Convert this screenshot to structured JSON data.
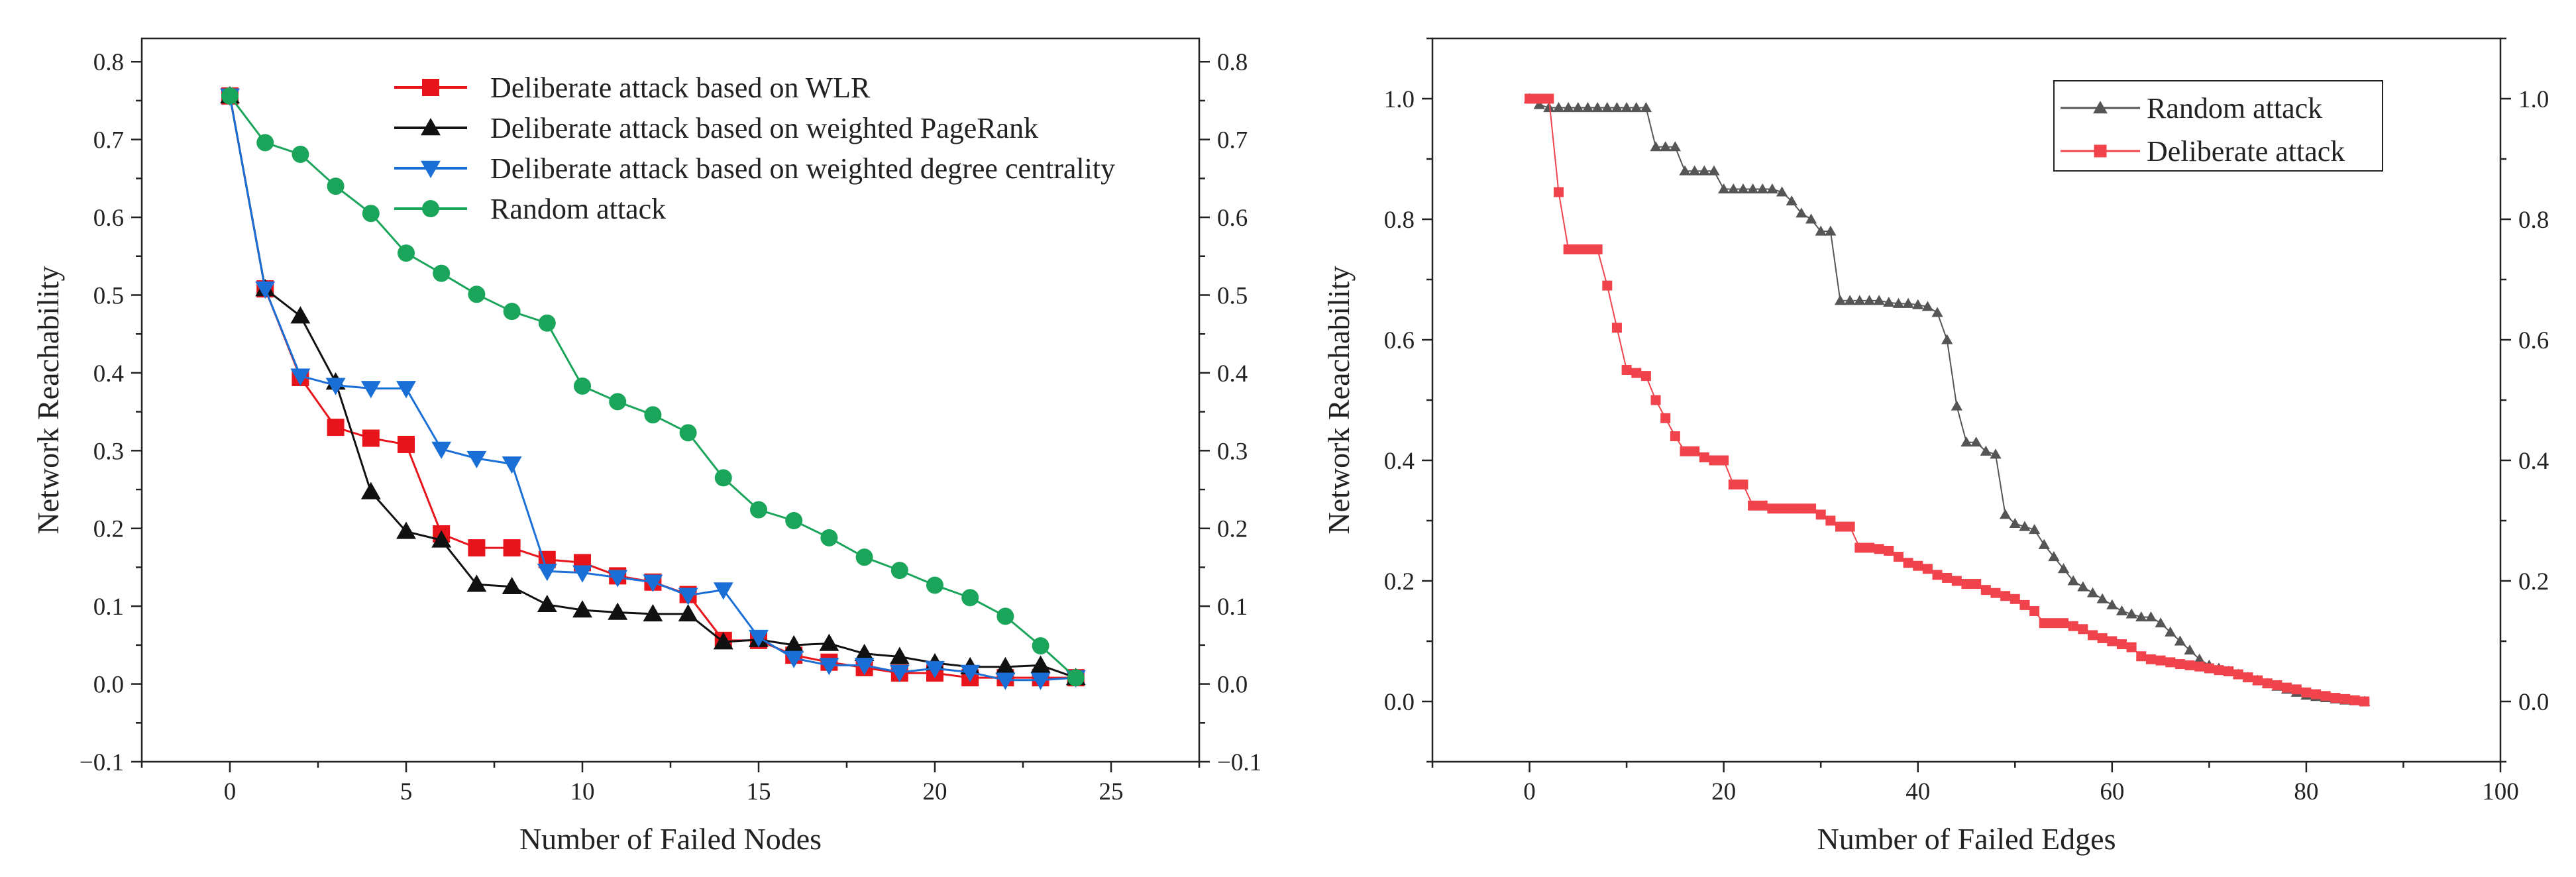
{
  "chart_data": [
    {
      "type": "line",
      "xlabel": "Number of Failed Nodes",
      "ylabel": "Network Reachability",
      "xlim": [
        -2.5,
        27.5
      ],
      "ylim": [
        -0.1,
        0.83
      ],
      "xticks": [
        0,
        5,
        10,
        15,
        20,
        25
      ],
      "yticks": [
        -0.1,
        0.0,
        0.1,
        0.2,
        0.3,
        0.4,
        0.5,
        0.6,
        0.7,
        0.8
      ],
      "xtick_labels": [
        "0",
        "5",
        "10",
        "15",
        "20",
        "25"
      ],
      "ytick_labels": [
        "−0.1",
        "0.0",
        "0.1",
        "0.2",
        "0.3",
        "0.4",
        "0.5",
        "0.6",
        "0.7",
        "0.8"
      ],
      "right_axis_mirror": true,
      "legend_position": "top-center",
      "series": [
        {
          "name": "Deliberate attack based on WLR",
          "color": "#e8141b",
          "marker": "square",
          "x": [
            0,
            1,
            2,
            3,
            4,
            5,
            6,
            7,
            8,
            9,
            10,
            11,
            12,
            13,
            14,
            15,
            16,
            17,
            18,
            19,
            20,
            21,
            22,
            23,
            24
          ],
          "values": [
            0.756,
            0.508,
            0.394,
            0.33,
            0.316,
            0.308,
            0.193,
            0.175,
            0.175,
            0.16,
            0.156,
            0.139,
            0.131,
            0.115,
            0.056,
            0.056,
            0.037,
            0.028,
            0.021,
            0.014,
            0.014,
            0.008,
            0.008,
            0.008,
            0.008
          ]
        },
        {
          "name": "Deliberate attack based on weighted PageRank",
          "color": "#111111",
          "marker": "triangle-up",
          "x": [
            0,
            1,
            2,
            3,
            4,
            5,
            6,
            7,
            8,
            9,
            10,
            11,
            12,
            13,
            14,
            15,
            16,
            17,
            18,
            19,
            20,
            21,
            22,
            23,
            24
          ],
          "values": [
            0.756,
            0.508,
            0.473,
            0.388,
            0.247,
            0.196,
            0.185,
            0.128,
            0.125,
            0.102,
            0.095,
            0.092,
            0.09,
            0.09,
            0.054,
            0.057,
            0.05,
            0.052,
            0.039,
            0.035,
            0.027,
            0.022,
            0.022,
            0.024,
            0.008
          ]
        },
        {
          "name": "Deliberate attack based on weighted degree centrality",
          "color": "#1a6fd6",
          "marker": "triangle-down",
          "x": [
            0,
            1,
            2,
            3,
            4,
            5,
            6,
            7,
            8,
            9,
            10,
            11,
            12,
            13,
            14,
            15,
            16,
            17,
            18,
            19,
            20,
            21,
            22,
            23,
            24
          ],
          "values": [
            0.756,
            0.508,
            0.396,
            0.384,
            0.38,
            0.38,
            0.302,
            0.29,
            0.283,
            0.145,
            0.143,
            0.137,
            0.131,
            0.114,
            0.121,
            0.06,
            0.033,
            0.024,
            0.024,
            0.015,
            0.02,
            0.015,
            0.005,
            0.005,
            0.008
          ]
        },
        {
          "name": "Random attack",
          "color": "#1aa55a",
          "marker": "circle",
          "x": [
            0,
            1,
            2,
            3,
            4,
            5,
            6,
            7,
            8,
            9,
            10,
            11,
            12,
            13,
            14,
            15,
            16,
            17,
            18,
            19,
            20,
            21,
            22,
            23,
            24
          ],
          "values": [
            0.756,
            0.696,
            0.681,
            0.64,
            0.605,
            0.554,
            0.528,
            0.501,
            0.479,
            0.464,
            0.383,
            0.363,
            0.346,
            0.323,
            0.265,
            0.224,
            0.21,
            0.188,
            0.163,
            0.146,
            0.127,
            0.111,
            0.087,
            0.049,
            0.008
          ]
        }
      ]
    },
    {
      "type": "line",
      "xlabel": "Number of Failed Edges",
      "ylabel": "Network Reachability",
      "xlim": [
        -10,
        100
      ],
      "ylim": [
        -0.1,
        1.1
      ],
      "xticks": [
        0,
        20,
        40,
        60,
        80,
        100
      ],
      "yticks": [
        0.0,
        0.2,
        0.4,
        0.6,
        0.8,
        1.0
      ],
      "xtick_labels": [
        "0",
        "20",
        "40",
        "60",
        "80",
        "100"
      ],
      "ytick_labels": [
        "0.0",
        "0.2",
        "0.4",
        "0.6",
        "0.8",
        "1.0"
      ],
      "right_axis_mirror": true,
      "legend_position": "top-right",
      "series": [
        {
          "name": "Random attack",
          "color": "#555555",
          "marker": "triangle-up",
          "x": [
            0,
            1,
            2,
            3,
            4,
            5,
            6,
            7,
            8,
            9,
            10,
            11,
            12,
            13,
            14,
            15,
            16,
            17,
            18,
            19,
            20,
            21,
            22,
            23,
            24,
            25,
            26,
            27,
            28,
            29,
            30,
            31,
            32,
            33,
            34,
            35,
            36,
            37,
            38,
            39,
            40,
            41,
            42,
            43,
            44,
            45,
            46,
            47,
            48,
            49,
            50,
            51,
            52,
            53,
            54,
            55,
            56,
            57,
            58,
            59,
            60,
            61,
            62,
            63,
            64,
            65,
            66,
            67,
            68,
            69,
            70,
            71,
            72,
            73,
            74,
            75,
            76,
            77,
            78,
            79,
            80,
            81,
            82,
            83,
            84,
            85,
            86
          ],
          "values": [
            1.0,
            0.99,
            0.985,
            0.985,
            0.985,
            0.985,
            0.985,
            0.985,
            0.985,
            0.985,
            0.985,
            0.985,
            0.985,
            0.92,
            0.92,
            0.92,
            0.88,
            0.88,
            0.88,
            0.88,
            0.85,
            0.85,
            0.85,
            0.85,
            0.85,
            0.85,
            0.845,
            0.83,
            0.81,
            0.8,
            0.78,
            0.78,
            0.665,
            0.665,
            0.665,
            0.665,
            0.665,
            0.662,
            0.66,
            0.66,
            0.658,
            0.655,
            0.645,
            0.6,
            0.49,
            0.43,
            0.43,
            0.415,
            0.41,
            0.31,
            0.295,
            0.29,
            0.285,
            0.26,
            0.24,
            0.22,
            0.2,
            0.19,
            0.18,
            0.17,
            0.16,
            0.15,
            0.145,
            0.14,
            0.14,
            0.13,
            0.115,
            0.1,
            0.085,
            0.07,
            0.06,
            0.055,
            0.05,
            0.045,
            0.04,
            0.035,
            0.03,
            0.025,
            0.02,
            0.015,
            0.01,
            0.008,
            0.006,
            0.004,
            0.002,
            0.001,
            0.0
          ]
        },
        {
          "name": "Deliberate attack",
          "color": "#f0434c",
          "marker": "square",
          "x": [
            0,
            1,
            2,
            3,
            4,
            5,
            6,
            7,
            8,
            9,
            10,
            11,
            12,
            13,
            14,
            15,
            16,
            17,
            18,
            19,
            20,
            21,
            22,
            23,
            24,
            25,
            26,
            27,
            28,
            29,
            30,
            31,
            32,
            33,
            34,
            35,
            36,
            37,
            38,
            39,
            40,
            41,
            42,
            43,
            44,
            45,
            46,
            47,
            48,
            49,
            50,
            51,
            52,
            53,
            54,
            55,
            56,
            57,
            58,
            59,
            60,
            61,
            62,
            63,
            64,
            65,
            66,
            67,
            68,
            69,
            70,
            71,
            72,
            73,
            74,
            75,
            76,
            77,
            78,
            79,
            80,
            81,
            82,
            83,
            84,
            85,
            86
          ],
          "values": [
            1.0,
            1.0,
            1.0,
            0.845,
            0.75,
            0.75,
            0.75,
            0.75,
            0.69,
            0.62,
            0.55,
            0.545,
            0.54,
            0.5,
            0.47,
            0.44,
            0.415,
            0.415,
            0.405,
            0.4,
            0.4,
            0.36,
            0.36,
            0.325,
            0.325,
            0.32,
            0.32,
            0.32,
            0.32,
            0.32,
            0.31,
            0.3,
            0.29,
            0.29,
            0.255,
            0.255,
            0.253,
            0.25,
            0.24,
            0.23,
            0.225,
            0.22,
            0.21,
            0.205,
            0.2,
            0.195,
            0.195,
            0.185,
            0.18,
            0.175,
            0.17,
            0.16,
            0.15,
            0.13,
            0.13,
            0.13,
            0.125,
            0.12,
            0.11,
            0.105,
            0.1,
            0.095,
            0.09,
            0.075,
            0.07,
            0.068,
            0.065,
            0.062,
            0.06,
            0.058,
            0.055,
            0.052,
            0.05,
            0.045,
            0.04,
            0.035,
            0.03,
            0.027,
            0.023,
            0.02,
            0.015,
            0.012,
            0.009,
            0.006,
            0.004,
            0.002,
            0.0
          ]
        }
      ]
    }
  ]
}
